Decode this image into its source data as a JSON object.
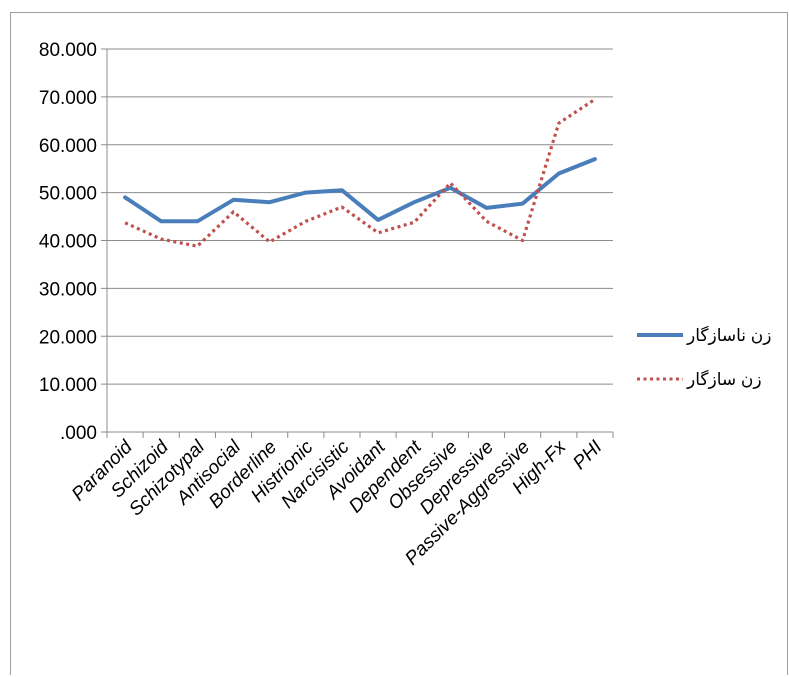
{
  "chart_data": {
    "type": "line",
    "title": "",
    "xlabel": "",
    "ylabel": "",
    "categories": [
      "Paranoid",
      "Schizoid",
      "Schizotypal",
      "Antisocial",
      "Borderline",
      "Histrionic",
      "Narcisistic",
      "Avoidant",
      "Dependent",
      "Obsessive",
      "Depressive",
      "Passive-Aggressive",
      "High-Fx",
      "PHI"
    ],
    "series": [
      {
        "name": "زن ناسازگار",
        "color": "#4a7ebb",
        "style": "solid",
        "values": [
          49,
          44,
          44,
          48.5,
          48,
          50,
          50.5,
          44.3,
          48,
          51,
          46.8,
          47.7,
          54,
          57
        ]
      },
      {
        "name": "زن سازگار",
        "color": "#c0504d",
        "style": "dotted",
        "values": [
          43.7,
          40.3,
          38.8,
          46,
          39.7,
          44,
          47,
          41.6,
          43.8,
          52,
          44,
          40,
          64.5,
          69.5
        ]
      }
    ],
    "ylim": [
      0,
      80
    ],
    "yticks": [
      ".000",
      "10.000",
      "20.000",
      "30.000",
      "40.000",
      "50.000",
      "60.000",
      "70.000",
      "80.000"
    ],
    "grid": true,
    "legend_position": "right"
  }
}
